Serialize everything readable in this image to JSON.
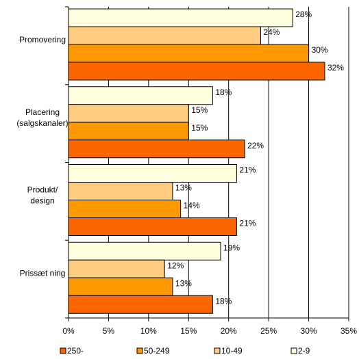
{
  "chart_data": {
    "type": "bar",
    "orientation": "horizontal",
    "categories": [
      "Promovering",
      "Placering (salgskanaler)",
      "Produkt/ design",
      "Prissætning"
    ],
    "category_label_lines": [
      [
        "Promovering"
      ],
      [
        "Placering",
        "(salgskanaler)"
      ],
      [
        "Produkt/",
        "design"
      ],
      [
        "Prissæt ning"
      ]
    ],
    "series": [
      {
        "name": "250-",
        "color": "#FF6600",
        "values": [
          32,
          22,
          21,
          18
        ]
      },
      {
        "name": "50-249",
        "color": "#FF9900",
        "values": [
          30,
          15,
          14,
          13
        ]
      },
      {
        "name": "10-49",
        "color": "#FFCC80",
        "values": [
          24,
          15,
          13,
          12
        ]
      },
      {
        "name": "2-9",
        "color": "#FFFFDD",
        "values": [
          28,
          18,
          21,
          19
        ]
      }
    ],
    "data_labels": [
      [
        "32%",
        "22%",
        "21%",
        "18%"
      ],
      [
        "30%",
        "15%",
        "14%",
        "13%"
      ],
      [
        "24%",
        "15%",
        "13%",
        "12%"
      ],
      [
        "28%",
        "18%",
        "21%",
        "19%"
      ]
    ],
    "x_ticks": [
      "0%",
      "5%",
      "10%",
      "15%",
      "20%",
      "25%",
      "30%",
      "35%"
    ],
    "xlim": [
      0,
      35
    ],
    "grid": "vertical",
    "legend_position": "bottom",
    "bar_order_top_to_bottom": [
      "2-9",
      "10-49",
      "50-249",
      "250-"
    ]
  }
}
